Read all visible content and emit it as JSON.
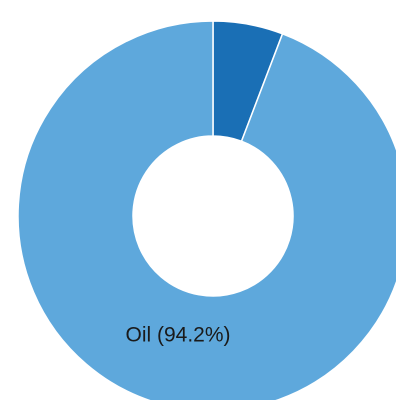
{
  "chart_data": {
    "type": "pie",
    "donut": true,
    "slices": [
      {
        "label": "",
        "value": 5.8,
        "color": "#1a6fb5",
        "text": ""
      },
      {
        "label": "Oil",
        "value": 94.2,
        "color": "#5ea8dc",
        "text": "Oil (94.2%)"
      }
    ]
  }
}
